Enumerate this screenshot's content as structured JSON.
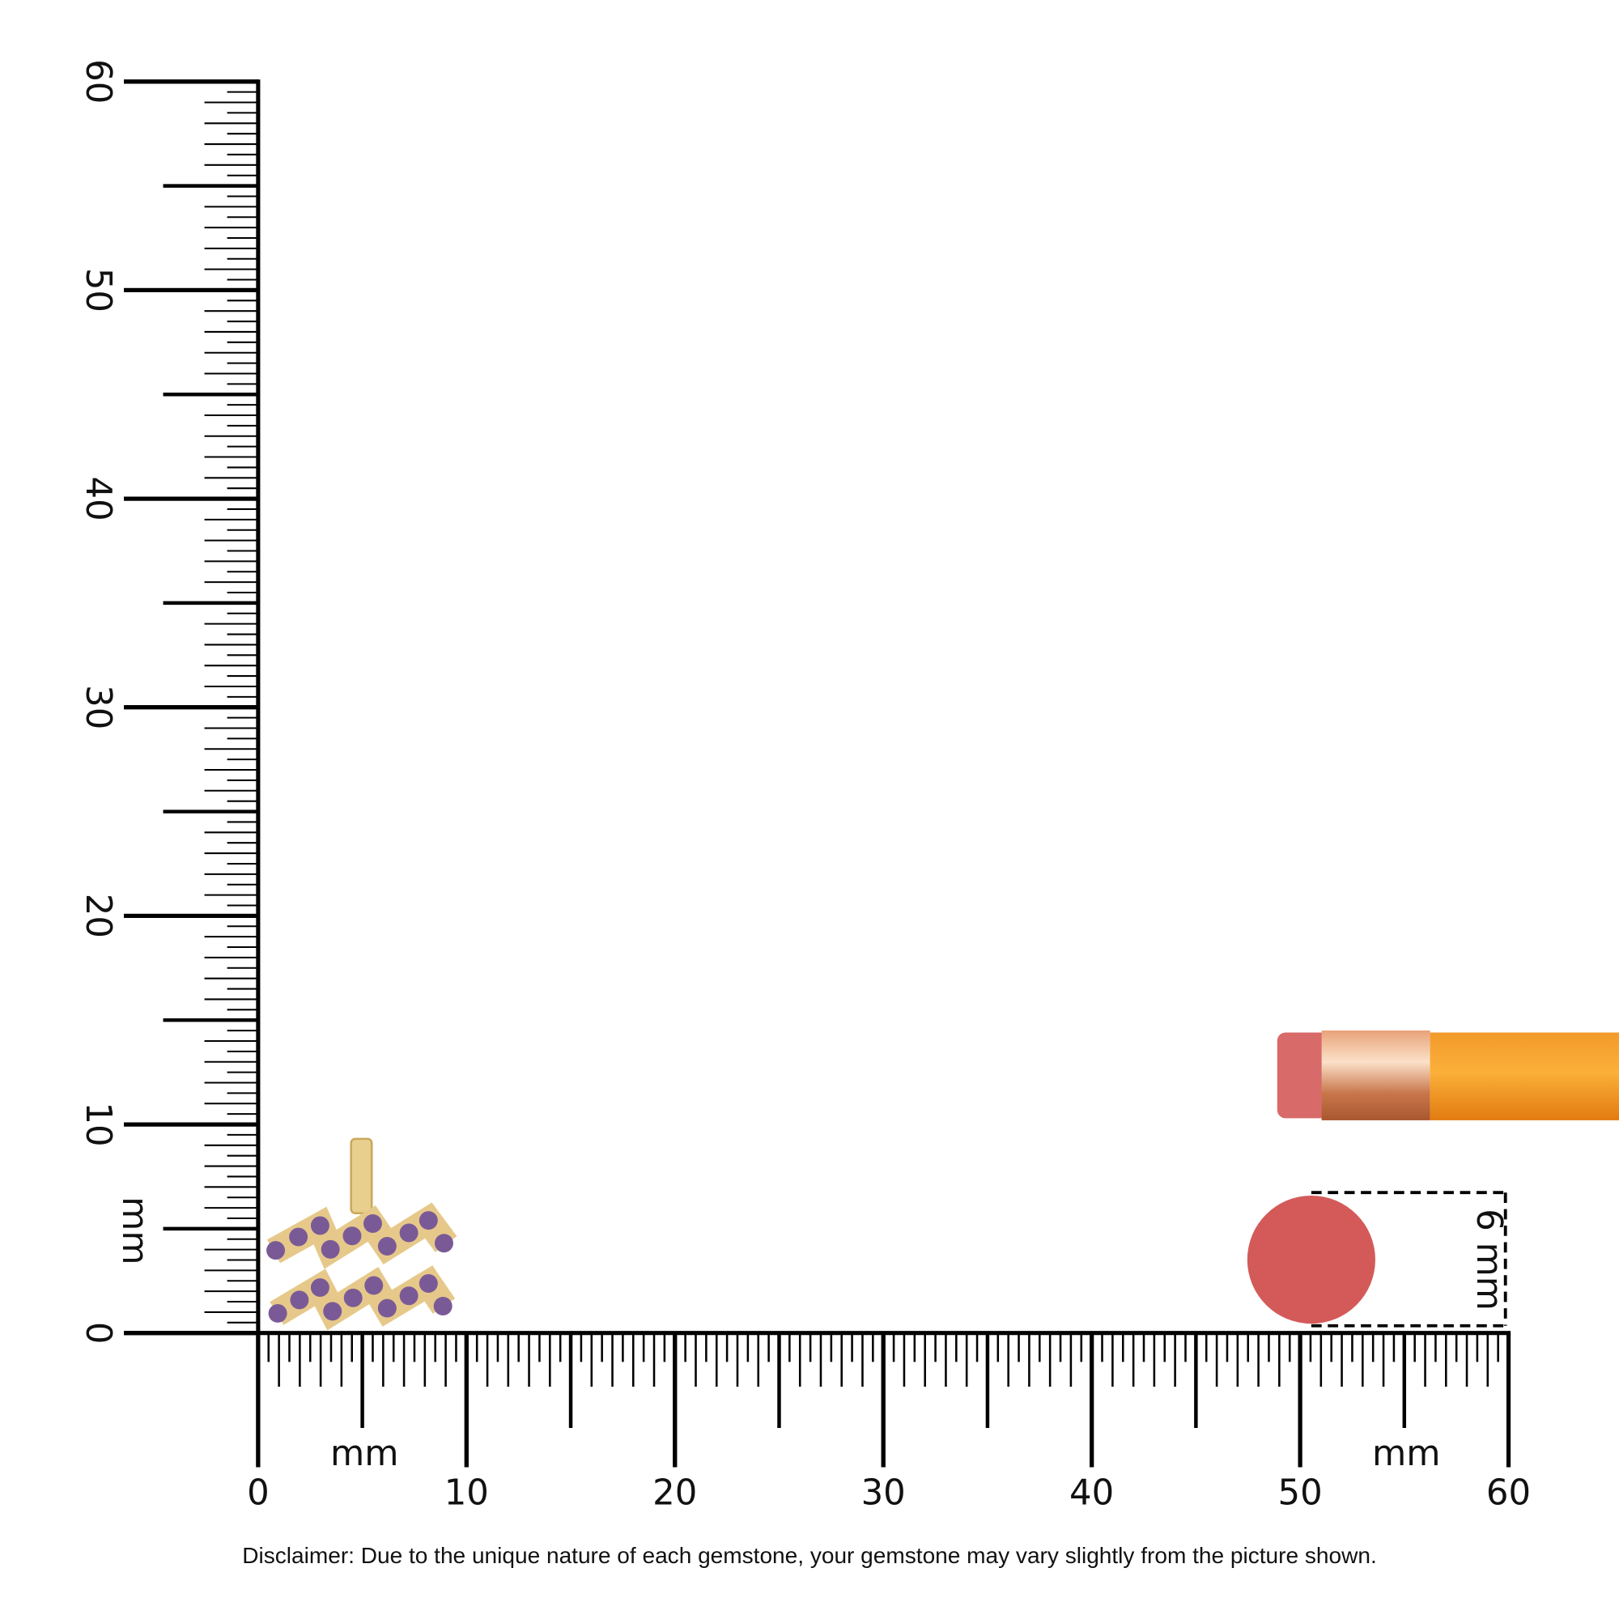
{
  "ruler_x": {
    "labels": [
      0,
      10,
      20,
      30,
      40,
      50,
      60
    ],
    "units": [
      "mm",
      "mm"
    ]
  },
  "ruler_y": {
    "labels": [
      0,
      10,
      20,
      30,
      40,
      50,
      60
    ],
    "unit": "mm"
  },
  "eraser_size": "6 mm",
  "disclaimer": "Disclaimer: Due to the unique nature of each gemstone, your gemstone may vary slightly from the picture shown."
}
